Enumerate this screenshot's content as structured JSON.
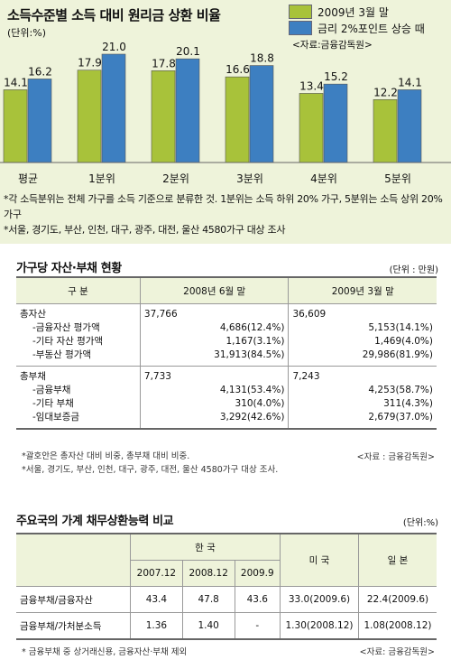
{
  "colors": {
    "panel_bg": "#eef3da",
    "green": "#a8c23a",
    "blue": "#3d7fc1"
  },
  "chart_data": {
    "type": "bar",
    "title": "소득수준별 소득 대비 원리금 상환 비율",
    "unit": "(단위:%)",
    "categories": [
      "평균",
      "1분위",
      "2분위",
      "3분위",
      "4분위",
      "5분위"
    ],
    "series": [
      {
        "name": "2009년 3월 말",
        "values": [
          14.1,
          17.9,
          17.8,
          16.6,
          13.4,
          12.2
        ]
      },
      {
        "name": "금리 2%포인트 상승 때",
        "values": [
          16.2,
          21.0,
          20.1,
          18.8,
          15.2,
          14.1
        ]
      }
    ],
    "value_labels": [
      [
        "14.1",
        "17.9",
        "17.8",
        "16.6",
        "13.4",
        "12.2"
      ],
      [
        "16.2",
        "21.0",
        "20.1",
        "18.8",
        "15.2",
        "14.1"
      ]
    ],
    "source": "<자료:금융감독원>",
    "notes": [
      "*각 소득분위는 전체 가구를 소득 기준으로 분류한 것. 1분위는 소득 하위 20% 가구, 5분위는 소득 상위 20% 가구",
      "*서울, 경기도, 부산, 인천, 대구, 광주, 대전, 울산 4580가구 대상 조사"
    ]
  },
  "assets_table": {
    "title": "가구당 자산·부채 현황",
    "unit": "(단위 : 만원)",
    "header": [
      "구 분",
      "2008년 6월 말",
      "2009년 3월 말"
    ],
    "groups": [
      {
        "label": "총자산",
        "total_2008": "37,766",
        "total_2009": "36,609",
        "items": [
          {
            "label": "-금융자산 평가액",
            "v2008": "4,686(12.4%)",
            "v2009": "5,153(14.1%)"
          },
          {
            "label": "-기타 자산 평가액",
            "v2008": "1,167(3.1%)",
            "v2009": "1,469(4.0%)"
          },
          {
            "label": "-부동산 평가액",
            "v2008": "31,913(84.5%)",
            "v2009": "29,986(81.9%)"
          }
        ]
      },
      {
        "label": "총부채",
        "total_2008": "7,733",
        "total_2009": "7,243",
        "items": [
          {
            "label": "-금융부채",
            "v2008": "4,131(53.4%)",
            "v2009": "4,253(58.7%)"
          },
          {
            "label": "-기타 부채",
            "v2008": "310(4.0%)",
            "v2009": "311(4.3%)"
          },
          {
            "label": "-임대보증금",
            "v2008": "3,292(42.6%)",
            "v2009": "2,679(37.0%)"
          }
        ]
      }
    ],
    "notes": [
      "*괄호안은 총자산 대비 비중, 총부채 대비 비중.",
      "*서울, 경기도, 부산, 인천, 대구, 광주, 대전, 울산 4580가구 대상 조사."
    ],
    "source": "<자료 : 금융감독원>"
  },
  "debt_table": {
    "title": "주요국의 가계 채무상환능력 비교",
    "unit": "(단위:%)",
    "korea_label": "한 국",
    "us_label": "미 국",
    "japan_label": "일 본",
    "korea_periods": [
      "2007.12",
      "2008.12",
      "2009.9"
    ],
    "rows": [
      {
        "label": "금융부채/금융자산",
        "korea": [
          "43.4",
          "47.8",
          "43.6"
        ],
        "us": "33.0(2009.6)",
        "japan": "22.4(2009.6)"
      },
      {
        "label": "금융부채/가처분소득",
        "korea": [
          "1.36",
          "1.40",
          "-"
        ],
        "us": "1.30(2008.12)",
        "japan": "1.08(2008.12)"
      }
    ],
    "note": "* 금융부채 중 상거래신용, 금융자산·부채 제외",
    "source": "<자료: 금융감독원>"
  }
}
